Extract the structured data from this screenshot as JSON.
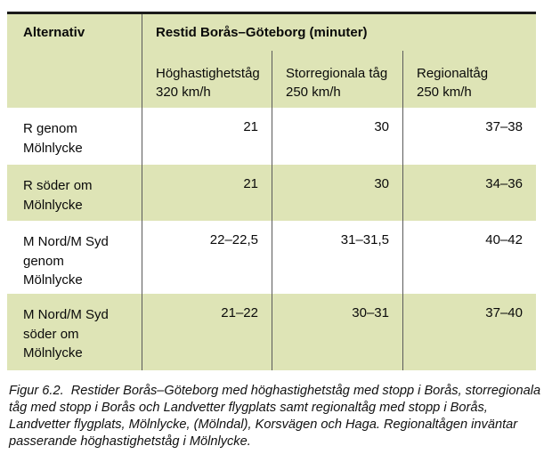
{
  "table": {
    "header": {
      "col1": "Alternativ",
      "span": "Restid Borås–Göteborg (minuter)",
      "sub": [
        "Höghastighetståg\n320 km/h",
        "Storregionala tåg\n250 km/h",
        "Regionaltåg\n250 km/h"
      ]
    },
    "rows": [
      {
        "label": "R genom\nMölnlycke",
        "values": [
          "21",
          "30",
          "37–38"
        ]
      },
      {
        "label": "R söder om\nMölnlycke",
        "values": [
          "21",
          "30",
          "34–36"
        ]
      },
      {
        "label": "M Nord/M Syd\ngenom\nMölnlycke",
        "values": [
          "22–22,5",
          "31–31,5",
          "40–42"
        ]
      },
      {
        "label": "M Nord/M Syd\nsöder om\nMölnlycke",
        "values": [
          "21–22",
          "30–31",
          "37–40"
        ]
      }
    ]
  },
  "caption": {
    "text": "Figur 6.2.  Restider Borås–Göteborg med höghastighetståg med stopp i Borås, storregionala\ntåg med stopp i Borås och Landvetter flygplats samt regionaltåg med stopp i Borås,\nLandvetter flygplats, Mölnlycke, (Mölndal), Korsvägen och Haga. Regionaltågen inväntar\npasserande höghastighetståg i Mölnlycke."
  },
  "colors": {
    "band": "#dee4b6",
    "top_border": "#1b1b1b",
    "divider": "#5a5a5a"
  }
}
